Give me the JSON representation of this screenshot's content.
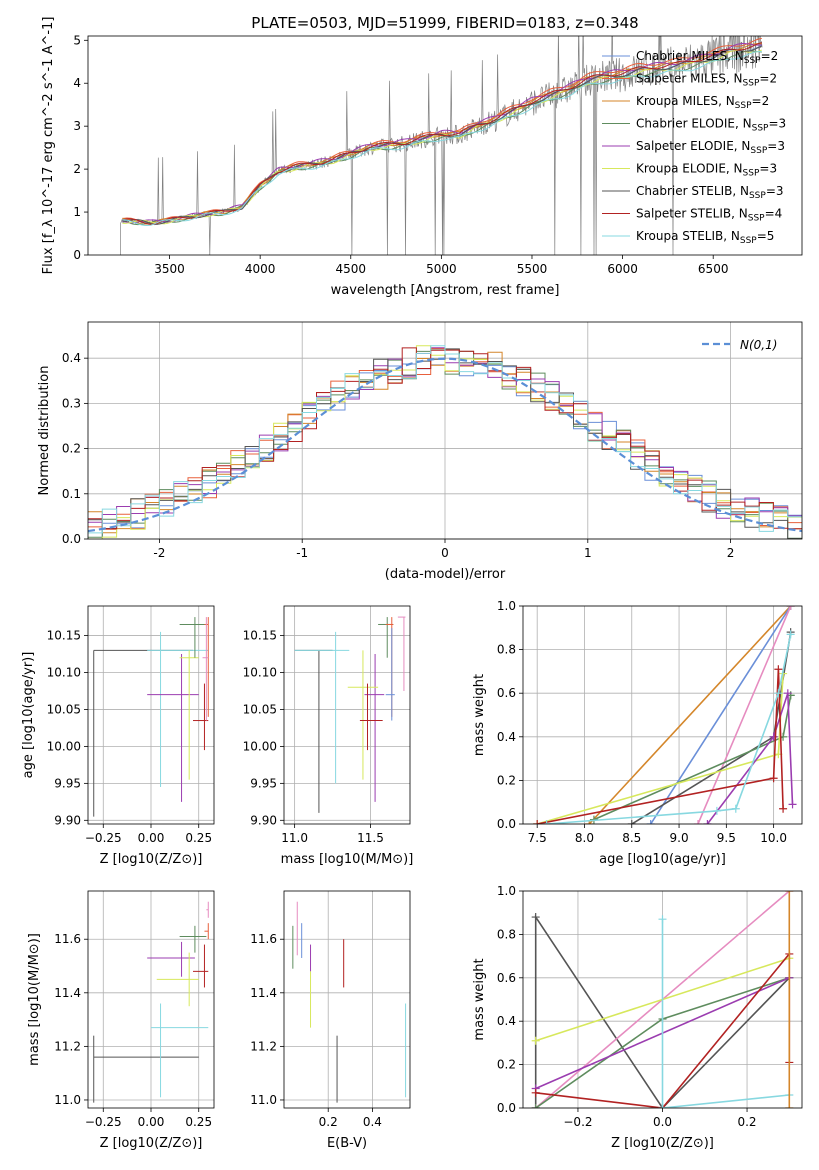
{
  "figure": {
    "title": "PLATE=0503, MJD=51999, FIBERID=0183, z=0.348"
  },
  "chart_data": [
    {
      "id": "spectrum",
      "type": "line",
      "xlabel": "wavelength [Angstrom, rest frame]",
      "ylabel": "Flux [f_λ 10^-17 erg cm^-2 s^-1 A^-1]",
      "xlim": [
        3050,
        6990
      ],
      "ylim": [
        0,
        5.1
      ],
      "xticks": [
        3500,
        4000,
        4500,
        5000,
        5500,
        6000,
        6500
      ],
      "yticks": [
        0,
        1,
        2,
        3,
        4,
        5
      ],
      "grid": false,
      "legend_placement": "upper-right",
      "data_color": "#808080",
      "data_x": [
        3230,
        3300,
        3400,
        3500,
        3600,
        3700,
        3800,
        3900,
        4000,
        4100,
        4200,
        4300,
        4400,
        4500,
        4600,
        4700,
        4800,
        4900,
        5000,
        5100,
        5200,
        5300,
        5400,
        5500,
        5600,
        5700,
        5800,
        5900,
        6000,
        6100,
        6200,
        6300,
        6400,
        6500,
        6600,
        6700,
        6770
      ],
      "data_y": [
        0.8,
        0.78,
        0.75,
        0.8,
        0.88,
        0.95,
        1.0,
        1.12,
        1.6,
        1.95,
        2.05,
        2.12,
        2.2,
        2.35,
        2.5,
        2.55,
        2.6,
        2.7,
        2.8,
        2.8,
        3.0,
        3.15,
        3.35,
        3.55,
        3.7,
        3.85,
        4.05,
        4.15,
        4.2,
        4.3,
        4.35,
        4.4,
        4.5,
        4.6,
        4.75,
        4.8,
        4.85
      ],
      "models": [
        {
          "name": "Chabrier MILES",
          "nssp": "2",
          "color": "#6a8fd8",
          "scale": 1.0
        },
        {
          "name": "Salpeter MILES",
          "nssp": "2",
          "color": "#e8603c",
          "scale": 1.03
        },
        {
          "name": "Kroupa MILES",
          "nssp": "2",
          "color": "#d4862a",
          "scale": 1.01
        },
        {
          "name": "Chabrier ELODIE",
          "nssp": "3",
          "color": "#5e8c5e",
          "scale": 0.98
        },
        {
          "name": "Salpeter ELODIE",
          "nssp": "3",
          "color": "#9b3db0",
          "scale": 1.02
        },
        {
          "name": "Kroupa ELODIE",
          "nssp": "3",
          "color": "#d7e85c",
          "scale": 0.99
        },
        {
          "name": "Chabrier STELIB",
          "nssp": "3",
          "color": "#555555",
          "scale": 1.0
        },
        {
          "name": "Salpeter STELIB",
          "nssp": "4",
          "color": "#b22222",
          "scale": 1.01
        },
        {
          "name": "Kroupa STELIB",
          "nssp": "5",
          "color": "#87d8e0",
          "scale": 0.97
        }
      ]
    },
    {
      "id": "residuals",
      "type": "step",
      "xlabel": "(data-model)/error",
      "ylabel": "Normed distribution",
      "xlim": [
        -2.5,
        2.5
      ],
      "ylim": [
        0,
        0.48
      ],
      "xticks": [
        -2,
        -1,
        0,
        1,
        2
      ],
      "yticks": [
        0.0,
        0.1,
        0.2,
        0.3,
        0.4
      ],
      "grid": true,
      "legend_label": "N(0,1)",
      "legend_placement": "upper-right",
      "bin_width": 0.1
    },
    {
      "id": "age-vs-Z",
      "type": "errorbar",
      "xlabel": "Z [log10(Z/Z⊙)]",
      "ylabel": "age  [log10(age/yr)]",
      "xlim": [
        -0.33,
        0.33
      ],
      "ylim": [
        9.895,
        10.19
      ],
      "xticks": [
        -0.25,
        0.0,
        0.25
      ],
      "xtick_labels": [
        "−0.25",
        "0.00",
        "0.25"
      ],
      "yticks": [
        9.9,
        9.95,
        10.0,
        10.05,
        10.1,
        10.15
      ],
      "grid": true,
      "points": [
        {
          "color": "#555555",
          "x": -0.3,
          "xlo": -0.3,
          "xhi": 0.22,
          "y": 10.13,
          "ylo": 9.905,
          "yhi": 10.13
        },
        {
          "color": "#87d8e0",
          "x": 0.05,
          "xlo": -0.02,
          "xhi": 0.3,
          "y": 10.13,
          "ylo": 9.945,
          "yhi": 10.155
        },
        {
          "color": "#9b3db0",
          "x": 0.16,
          "xlo": -0.02,
          "xhi": 0.25,
          "y": 10.07,
          "ylo": 9.925,
          "yhi": 10.125
        },
        {
          "color": "#d7e85c",
          "x": 0.2,
          "xlo": 0.15,
          "xhi": 0.25,
          "y": 10.12,
          "ylo": 9.955,
          "yhi": 10.13
        },
        {
          "color": "#5e8c5e",
          "x": 0.23,
          "xlo": 0.15,
          "xhi": 0.29,
          "y": 10.165,
          "ylo": 10.12,
          "yhi": 10.175
        },
        {
          "color": "#b22222",
          "x": 0.28,
          "xlo": 0.22,
          "xhi": 0.3,
          "y": 10.035,
          "ylo": 9.995,
          "yhi": 10.085
        },
        {
          "color": "#e8603c",
          "x": 0.3,
          "xlo": 0.28,
          "xhi": 0.3,
          "y": 10.165,
          "ylo": 10.04,
          "yhi": 10.175
        },
        {
          "color": "#e68cc0",
          "x": 0.29,
          "xlo": 0.27,
          "xhi": 0.3,
          "y": 10.12,
          "ylo": 10.035,
          "yhi": 10.175
        }
      ]
    },
    {
      "id": "age-vs-mass",
      "type": "errorbar",
      "xlabel": "mass [log10(M/M⊙)]",
      "xlim": [
        10.93,
        11.76
      ],
      "ylim": [
        9.895,
        10.19
      ],
      "xticks": [
        11.0,
        11.5
      ],
      "yticks": [
        9.9,
        9.95,
        10.0,
        10.05,
        10.1,
        10.15
      ],
      "grid": true,
      "points": [
        {
          "color": "#555555",
          "x": 11.16,
          "xlo": 11.0,
          "xhi": 11.25,
          "y": 10.13,
          "ylo": 9.91,
          "yhi": 10.13
        },
        {
          "color": "#87d8e0",
          "x": 11.27,
          "xlo": 11.0,
          "xhi": 11.36,
          "y": 10.13,
          "ylo": 9.95,
          "yhi": 10.155
        },
        {
          "color": "#9b3db0",
          "x": 11.53,
          "xlo": 11.46,
          "xhi": 11.59,
          "y": 10.07,
          "ylo": 9.925,
          "yhi": 10.125
        },
        {
          "color": "#d7e85c",
          "x": 11.45,
          "xlo": 11.35,
          "xhi": 11.55,
          "y": 10.08,
          "ylo": 9.955,
          "yhi": 10.13
        },
        {
          "color": "#5e8c5e",
          "x": 11.61,
          "xlo": 11.55,
          "xhi": 11.65,
          "y": 10.165,
          "ylo": 10.12,
          "yhi": 10.175
        },
        {
          "color": "#b22222",
          "x": 11.48,
          "xlo": 11.43,
          "xhi": 11.58,
          "y": 10.035,
          "ylo": 9.995,
          "yhi": 10.085
        },
        {
          "color": "#e8603c",
          "x": 11.64,
          "xlo": 11.6,
          "xhi": 11.65,
          "y": 10.165,
          "ylo": 10.04,
          "yhi": 10.175
        },
        {
          "color": "#e68cc0",
          "x": 11.72,
          "xlo": 11.68,
          "xhi": 11.73,
          "y": 10.175,
          "ylo": 10.075,
          "yhi": 10.175
        },
        {
          "color": "#6a8fd8",
          "x": 11.64,
          "xlo": 11.6,
          "xhi": 11.66,
          "y": 10.07,
          "ylo": 10.035,
          "yhi": 10.16
        }
      ]
    },
    {
      "id": "weight-vs-age",
      "type": "line",
      "xlabel": "age  [log10(age/yr)]",
      "ylabel": "mass weight",
      "xlim": [
        7.35,
        10.3
      ],
      "ylim": [
        0,
        1.0
      ],
      "xticks": [
        7.5,
        8.0,
        8.5,
        9.0,
        9.5,
        10.0
      ],
      "yticks": [
        0.0,
        0.2,
        0.4,
        0.6,
        0.8,
        1.0
      ],
      "grid": true,
      "series": [
        {
          "color": "#d4862a",
          "x": [
            8.05,
            10.18
          ],
          "y": [
            0.0,
            1.0
          ]
        },
        {
          "color": "#6a8fd8",
          "x": [
            8.7,
            10.18
          ],
          "y": [
            0.0,
            1.0
          ]
        },
        {
          "color": "#e68cc0",
          "x": [
            9.2,
            10.18
          ],
          "y": [
            0.0,
            1.0
          ]
        },
        {
          "color": "#555555",
          "x": [
            8.5,
            10.0,
            10.18
          ],
          "y": [
            0.0,
            0.4,
            0.88
          ]
        },
        {
          "color": "#5e8c5e",
          "x": [
            8.1,
            10.1,
            10.18,
            10.18
          ],
          "y": [
            0.02,
            0.4,
            0.59,
            0.59
          ]
        },
        {
          "color": "#d7e85c",
          "x": [
            7.5,
            10.05,
            10.1
          ],
          "y": [
            0.0,
            0.32,
            0.69
          ]
        },
        {
          "color": "#9b3db0",
          "x": [
            9.3,
            10.0,
            10.15,
            10.2
          ],
          "y": [
            0.0,
            0.4,
            0.6,
            0.09
          ]
        },
        {
          "color": "#b22222",
          "x": [
            7.5,
            10.0,
            10.05,
            10.1
          ],
          "y": [
            0.0,
            0.21,
            0.71,
            0.07
          ]
        },
        {
          "color": "#87d8e0",
          "x": [
            7.6,
            9.4,
            9.6,
            10.05,
            10.18
          ],
          "y": [
            0.0,
            0.06,
            0.07,
            0.6,
            0.87
          ]
        }
      ]
    },
    {
      "id": "mass-vs-Z",
      "type": "errorbar",
      "xlabel": "Z [log10(Z/Z⊙)]",
      "ylabel": "mass [log10(M/M⊙)]",
      "xlim": [
        -0.33,
        0.33
      ],
      "ylim": [
        10.97,
        11.78
      ],
      "xticks": [
        -0.25,
        0.0,
        0.25
      ],
      "xtick_labels": [
        "−0.25",
        "0.00",
        "0.25"
      ],
      "yticks": [
        11.0,
        11.2,
        11.4,
        11.6
      ],
      "grid": true,
      "points": [
        {
          "color": "#555555",
          "x": -0.3,
          "xlo": -0.3,
          "xhi": 0.25,
          "y": 11.16,
          "ylo": 10.99,
          "yhi": 11.24
        },
        {
          "color": "#87d8e0",
          "x": 0.05,
          "xlo": 0.0,
          "xhi": 0.3,
          "y": 11.27,
          "ylo": 11.01,
          "yhi": 11.36
        },
        {
          "color": "#9b3db0",
          "x": 0.16,
          "xlo": -0.02,
          "xhi": 0.23,
          "y": 11.53,
          "ylo": 11.46,
          "yhi": 11.59
        },
        {
          "color": "#d7e85c",
          "x": 0.2,
          "xlo": 0.03,
          "xhi": 0.25,
          "y": 11.45,
          "ylo": 11.35,
          "yhi": 11.55
        },
        {
          "color": "#5e8c5e",
          "x": 0.23,
          "xlo": 0.15,
          "xhi": 0.29,
          "y": 11.61,
          "ylo": 11.55,
          "yhi": 11.65
        },
        {
          "color": "#b22222",
          "x": 0.28,
          "xlo": 0.22,
          "xhi": 0.3,
          "y": 11.48,
          "ylo": 11.42,
          "yhi": 11.58
        },
        {
          "color": "#e8603c",
          "x": 0.3,
          "xlo": 0.28,
          "xhi": 0.3,
          "y": 11.63,
          "ylo": 11.6,
          "yhi": 11.66
        },
        {
          "color": "#e68cc0",
          "x": 0.3,
          "xlo": 0.29,
          "xhi": 0.3,
          "y": 11.71,
          "ylo": 11.68,
          "yhi": 11.74
        }
      ]
    },
    {
      "id": "mass-vs-EBV",
      "type": "errorbar",
      "xlabel": "E(B-V)",
      "xlim": [
        0.0,
        0.57
      ],
      "ylim": [
        10.97,
        11.78
      ],
      "xticks": [
        0.2,
        0.4
      ],
      "yticks": [
        11.0,
        11.2,
        11.4,
        11.6
      ],
      "grid": true,
      "points": [
        {
          "color": "#5e8c5e",
          "x": 0.04,
          "xlo": 0.04,
          "xhi": 0.04,
          "y": 11.59,
          "ylo": 11.49,
          "yhi": 11.65
        },
        {
          "color": "#e68cc0",
          "x": 0.06,
          "xlo": 0.06,
          "xhi": 0.06,
          "y": 11.67,
          "ylo": 11.54,
          "yhi": 11.74
        },
        {
          "color": "#6a8fd8",
          "x": 0.08,
          "xlo": 0.08,
          "xhi": 0.08,
          "y": 11.6,
          "ylo": 11.53,
          "yhi": 11.66
        },
        {
          "color": "#9b3db0",
          "x": 0.12,
          "xlo": 0.12,
          "xhi": 0.12,
          "y": 11.55,
          "ylo": 11.48,
          "yhi": 11.58
        },
        {
          "color": "#d7e85c",
          "x": 0.12,
          "xlo": 0.12,
          "xhi": 0.12,
          "y": 11.42,
          "ylo": 11.27,
          "yhi": 11.48
        },
        {
          "color": "#555555",
          "x": 0.24,
          "xlo": 0.24,
          "xhi": 0.24,
          "y": 11.12,
          "ylo": 10.99,
          "yhi": 11.24
        },
        {
          "color": "#b22222",
          "x": 0.27,
          "xlo": 0.27,
          "xhi": 0.27,
          "y": 11.52,
          "ylo": 11.42,
          "yhi": 11.6
        },
        {
          "color": "#87d8e0",
          "x": 0.55,
          "xlo": 0.55,
          "xhi": 0.55,
          "y": 11.18,
          "ylo": 11.01,
          "yhi": 11.36
        }
      ]
    },
    {
      "id": "weight-vs-Z",
      "type": "line",
      "xlabel": "Z [log10(Z/Z⊙)]",
      "ylabel": "mass weight",
      "xlim": [
        -0.33,
        0.33
      ],
      "ylim": [
        0,
        1.0
      ],
      "xticks": [
        -0.2,
        0.0,
        0.2
      ],
      "xtick_labels": [
        "−0.2",
        "0.0",
        "0.2"
      ],
      "yticks": [
        0.0,
        0.2,
        0.4,
        0.6,
        0.8,
        1.0
      ],
      "grid": true,
      "series": [
        {
          "color": "#555555",
          "x": [
            -0.3,
            -0.3,
            0.0,
            0.3,
            0.3
          ],
          "y": [
            0.0,
            0.88,
            0.0,
            0.6,
            0.6
          ]
        },
        {
          "color": "#e68cc0",
          "x": [
            -0.3,
            0.3
          ],
          "y": [
            0.0,
            1.0
          ]
        },
        {
          "color": "#d7e85c",
          "x": [
            -0.3,
            0.3
          ],
          "y": [
            0.31,
            0.69
          ]
        },
        {
          "color": "#5e8c5e",
          "x": [
            -0.3,
            0.0,
            0.3
          ],
          "y": [
            0.0,
            0.41,
            0.6
          ]
        },
        {
          "color": "#9b3db0",
          "x": [
            -0.3,
            0.3
          ],
          "y": [
            0.09,
            0.6
          ]
        },
        {
          "color": "#b22222",
          "x": [
            -0.3,
            0.0,
            0.3,
            0.3
          ],
          "y": [
            0.07,
            0.0,
            0.71,
            0.21
          ]
        },
        {
          "color": "#87d8e0",
          "x": [
            0.0,
            0.0,
            0.3
          ],
          "y": [
            0.87,
            0.0,
            0.06
          ]
        },
        {
          "color": "#d4862a",
          "x": [
            0.3,
            0.3
          ],
          "y": [
            0.0,
            1.0
          ]
        }
      ]
    }
  ]
}
